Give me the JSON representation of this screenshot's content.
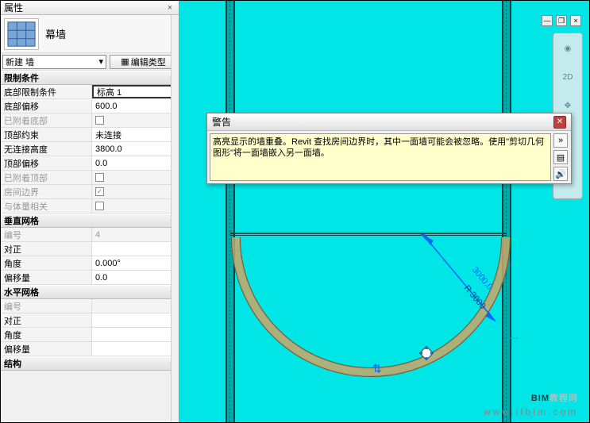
{
  "panel": {
    "title": "属性",
    "type_name": "幕墙",
    "selector": "新建 墙",
    "edit_type_btn": "编辑类型"
  },
  "groups": {
    "constraints": {
      "header": "限制条件",
      "rows": [
        {
          "label": "底部限制条件",
          "value": "标高 1",
          "editing": true
        },
        {
          "label": "底部偏移",
          "value": "600.0"
        },
        {
          "label": "已附着底部",
          "check": false,
          "disabled": true
        },
        {
          "label": "顶部约束",
          "value": "未连接"
        },
        {
          "label": "无连接高度",
          "value": "3800.0"
        },
        {
          "label": "顶部偏移",
          "value": "0.0"
        },
        {
          "label": "已附着顶部",
          "check": false,
          "disabled": true
        },
        {
          "label": "房间边界",
          "check": true,
          "disabled": true
        },
        {
          "label": "与体量相关",
          "check": false,
          "disabled": true
        }
      ]
    },
    "vgrid": {
      "header": "垂直网格",
      "rows": [
        {
          "label": "编号",
          "value": "4",
          "disabled": true
        },
        {
          "label": "对正",
          "value": ""
        },
        {
          "label": "角度",
          "value": "0.000°"
        },
        {
          "label": "偏移量",
          "value": "0.0"
        }
      ]
    },
    "hgrid": {
      "header": "水平网格",
      "rows": [
        {
          "label": "编号",
          "value": "",
          "disabled": true
        },
        {
          "label": "对正",
          "value": ""
        },
        {
          "label": "角度",
          "value": ""
        },
        {
          "label": "偏移量",
          "value": ""
        }
      ]
    },
    "struct": {
      "header": "结构"
    }
  },
  "warning": {
    "title": "警告",
    "text": "高亮显示的墙重叠。Revit 查找房间边界时，其中一面墙可能会被忽略。使用\"剪切几何图形\"将一面墙嵌入另一面墙。"
  },
  "dim": {
    "r_label": "R 3000",
    "val": "3000.0"
  },
  "watermark": {
    "line1_a": "BIM",
    "line1_b": "教程网",
    "url": "www.ifbim.com"
  },
  "colors": {
    "viewport_bg": "#00e5e5",
    "wall_fill": "#c9a86a",
    "wall_stroke": "#6b5a3a",
    "dim_color": "#0066ff"
  }
}
